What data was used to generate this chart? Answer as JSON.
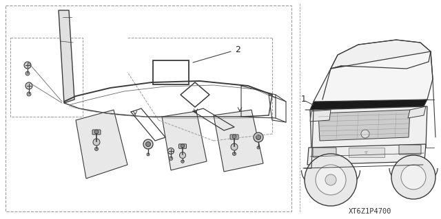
{
  "background_color": "#ffffff",
  "part_code": "XT6Z1P4700",
  "label_1": "1",
  "label_2": "2",
  "fig_width": 6.4,
  "fig_height": 3.19,
  "dpi": 100,
  "lc": "#3a3a3a",
  "dc": "#999999",
  "mc": "#555555"
}
